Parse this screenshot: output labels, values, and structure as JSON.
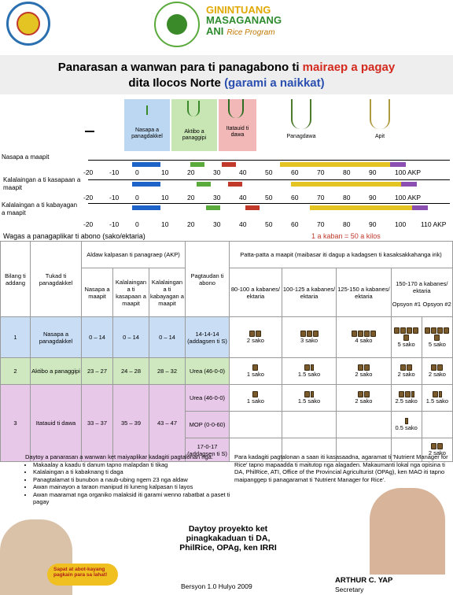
{
  "header": {
    "logo1_text": "PROVINCE OF ILOCOS NORTE · OFFICIAL SEAL",
    "logo2_text": "DEPARTMENT OF AGRICULTURE",
    "brand_line1": "GININTUANG",
    "brand_line2": "MASAGANANG",
    "brand_line3": "ANI",
    "brand_program": "Rice Program"
  },
  "title": {
    "part1": "Panarasan a wanwan para ti panagabono ti ",
    "part1_red": "mairaep a pagay",
    "part2": "dita Ilocos Norte ",
    "part2_blue": "(garami a naikkat)"
  },
  "stages": [
    "Nasapa a panagdakkel",
    "Aktibo a panaggipi",
    "Itatauid ti dawa",
    "Panagdawa",
    "Apit"
  ],
  "timeline": {
    "row1_label": "Nasapa a maapit",
    "row2_label": "Kalalaingan a ti kasapaan a maapit",
    "row3_label": "Kalalaingan a ti kabayagan a maapit",
    "ticks1": [
      "-20",
      "-10",
      "0",
      "10",
      "20",
      "30",
      "40",
      "50",
      "60",
      "70",
      "80",
      "90",
      "100 AKP"
    ],
    "ticks2": [
      "-20",
      "-10",
      "0",
      "10",
      "20",
      "30",
      "40",
      "50",
      "60",
      "70",
      "80",
      "90",
      "100 AKP"
    ],
    "ticks3": [
      "-20",
      "-10",
      "0",
      "10",
      "20",
      "30",
      "40",
      "50",
      "60",
      "70",
      "80",
      "90",
      "100",
      "110 AKP"
    ],
    "colors": {
      "blue": "#1e64c8",
      "green": "#5aaa3c",
      "red": "#c0392b",
      "yellow": "#e3c422",
      "purple": "#8a4fb0"
    }
  },
  "wagas": {
    "left": "Wagas a panagaplikar ti abono (sako/ektaria)",
    "right": "1 a kaban = 50 a kilos"
  },
  "table": {
    "col_aldaw": "Aldaw kalpasan ti panagraep (AKP)",
    "col_patta": "Patta-patta a maapit (maibasar iti dagup a kadagsen ti kasaksakkahanga irik)",
    "h_bilang": "Bilang ti addang",
    "h_tukad": "Tukad ti panagdakkel",
    "h_nasapa": "Nasapa a maapit",
    "h_kasapaan": "Kalalaingan a ti kasapaan a maapit",
    "h_kabayagan": "Kalalaingan a ti kabayagan a maapit",
    "h_pagtaudan": "Pagtaudan ti abono",
    "h_y1": "80-100 a kabanes/ ektaria",
    "h_y2": "100-125 a kabanes/ ektaria",
    "h_y3": "125-150 a kabanes/ ektaria",
    "h_y4": "150-170 a kabanes/ ektaria",
    "h_opt1": "Opsyon #1",
    "h_opt2": "Opsyon #2",
    "rows": [
      {
        "num": "1",
        "stage": "Nasapa a panagdakkel",
        "a": "0 – 14",
        "b": "0 – 14",
        "c": "0 – 14",
        "src": "14-14-14 (addagsen ti S)",
        "v": [
          "2 sako",
          "3 sako",
          "4 sako",
          "5 sako",
          "5 sako"
        ]
      },
      {
        "num": "2",
        "stage": "Aktibo a panaggipi",
        "a": "23 – 27",
        "b": "24 – 28",
        "c": "28 – 32",
        "src": "Urea (46-0-0)",
        "v": [
          "1 sako",
          "1.5 sako",
          "2 sako",
          "2 sako",
          "2 sako"
        ]
      },
      {
        "num": "3",
        "stage": "Itatauid ti dawa",
        "a": "33 – 37",
        "b": "35 – 39",
        "c": "43 – 47",
        "src1": "Urea (46-0-0)",
        "v1": [
          "1 sako",
          "1.5 sako",
          "2 sako",
          "2.5 sako",
          "1.5 sako"
        ],
        "src2": "MOP (0-0-60)",
        "v2": [
          "0.5 sako"
        ],
        "src3": "17-0-17 (addagsen ti S)",
        "v3": [
          "2 sako"
        ]
      }
    ]
  },
  "notes": {
    "left_intro": "Daytoy a panarasan a wanwan ket maiyaplikar kadagiti pagtalonan nga:",
    "bullets": [
      "Makaalay a kaadu ti danum tapno malapdan ti tikag",
      "Kalalaingan a ti kabaknang ti daga",
      "Panagtalamat ti bunubon a naub-ubing ngem 23 nga aldaw",
      "Awan mainayon a taraon manipud iti luneng kalpasan ti layos",
      "Awan maaramat nga organiko malaksid iti garami wenno rabatbat a paset ti pagay"
    ],
    "right_text": "Para kadagiti pagtalonan a saan iti kasasaadna, agaramat ti 'Nutrient Manager for Rice' tapno mapaadda ti maitutop nga alagaden. Makaumanti lokal nga opisina ti DA, PhilRice, ATI, Office of the Provincial Agriculturist (OPAg), ken MAO iti tapno maipanggep ti panagaramat ti 'Nutrient Manager for Rice'.",
    "project_line1": "Daytoy proyekto ket",
    "project_line2": "pinagkakaduan ti DA,",
    "project_line3": "PhilRice, OPAg, ken IRRI",
    "version": "Bersyon 1.0 Hulyo 2009",
    "speech": "Sapat at abot-kayang pagkain para sa lahat!",
    "official_name": "ARTHUR C. YAP",
    "official_title": "Secretary"
  }
}
